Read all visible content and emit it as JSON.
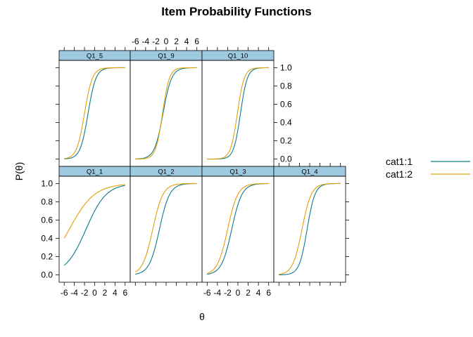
{
  "chart_data": {
    "type": "line",
    "title": "Item Probability Functions",
    "xlabel": "θ",
    "ylabel": "P(θ)",
    "xlim": [
      -7,
      7
    ],
    "ylim": [
      -0.08,
      1.08
    ],
    "x_ticks": [
      -6,
      -4,
      -2,
      0,
      2,
      4,
      6
    ],
    "y_ticks": [
      0.0,
      0.2,
      0.4,
      0.6,
      0.8,
      1.0
    ],
    "x_tick_labels": [
      "-6",
      "-4",
      "-2",
      "0",
      "2",
      "4",
      "6"
    ],
    "y_tick_labels": [
      "0.0",
      "0.2",
      "0.4",
      "0.6",
      "0.8",
      "1.0"
    ],
    "legend": {
      "placement": "right",
      "entries": [
        {
          "label": "cat1:1",
          "color": "#0e7a8a"
        },
        {
          "label": "cat1:2",
          "color": "#e3a008"
        }
      ]
    },
    "colors": {
      "strip": "#9ecae1",
      "cat1_1": "#0e7a8a",
      "cat1_2": "#e3a008"
    },
    "panels": [
      {
        "name": "Q1_5",
        "series": [
          {
            "name": "cat1:1",
            "a": 1.3,
            "b": -1.3
          },
          {
            "name": "cat1:2",
            "a": 1.3,
            "b": -2.0
          }
        ]
      },
      {
        "name": "Q1_9",
        "series": [
          {
            "name": "cat1:1",
            "a": 1.2,
            "b": -0.6
          },
          {
            "name": "cat1:2",
            "a": 1.5,
            "b": -0.7
          }
        ]
      },
      {
        "name": "Q1_10",
        "series": [
          {
            "name": "cat1:1",
            "a": 1.5,
            "b": 0.5
          },
          {
            "name": "cat1:2",
            "a": 1.5,
            "b": -0.1
          }
        ]
      },
      {
        "name": "Q1_1",
        "series": [
          {
            "name": "cat1:1",
            "a": 0.5,
            "b": -1.7
          },
          {
            "name": "cat1:2",
            "a": 0.4,
            "b": -5.0
          }
        ]
      },
      {
        "name": "Q1_2",
        "series": [
          {
            "name": "cat1:1",
            "a": 1.0,
            "b": -1.3
          },
          {
            "name": "cat1:2",
            "a": 1.0,
            "b": -2.6
          }
        ]
      },
      {
        "name": "Q1_3",
        "series": [
          {
            "name": "cat1:1",
            "a": 1.0,
            "b": -1.2
          },
          {
            "name": "cat1:2",
            "a": 1.0,
            "b": -2.0
          }
        ]
      },
      {
        "name": "Q1_4",
        "series": [
          {
            "name": "cat1:1",
            "a": 1.3,
            "b": -0.5
          },
          {
            "name": "cat1:2",
            "a": 1.1,
            "b": -1.5
          }
        ]
      }
    ]
  }
}
